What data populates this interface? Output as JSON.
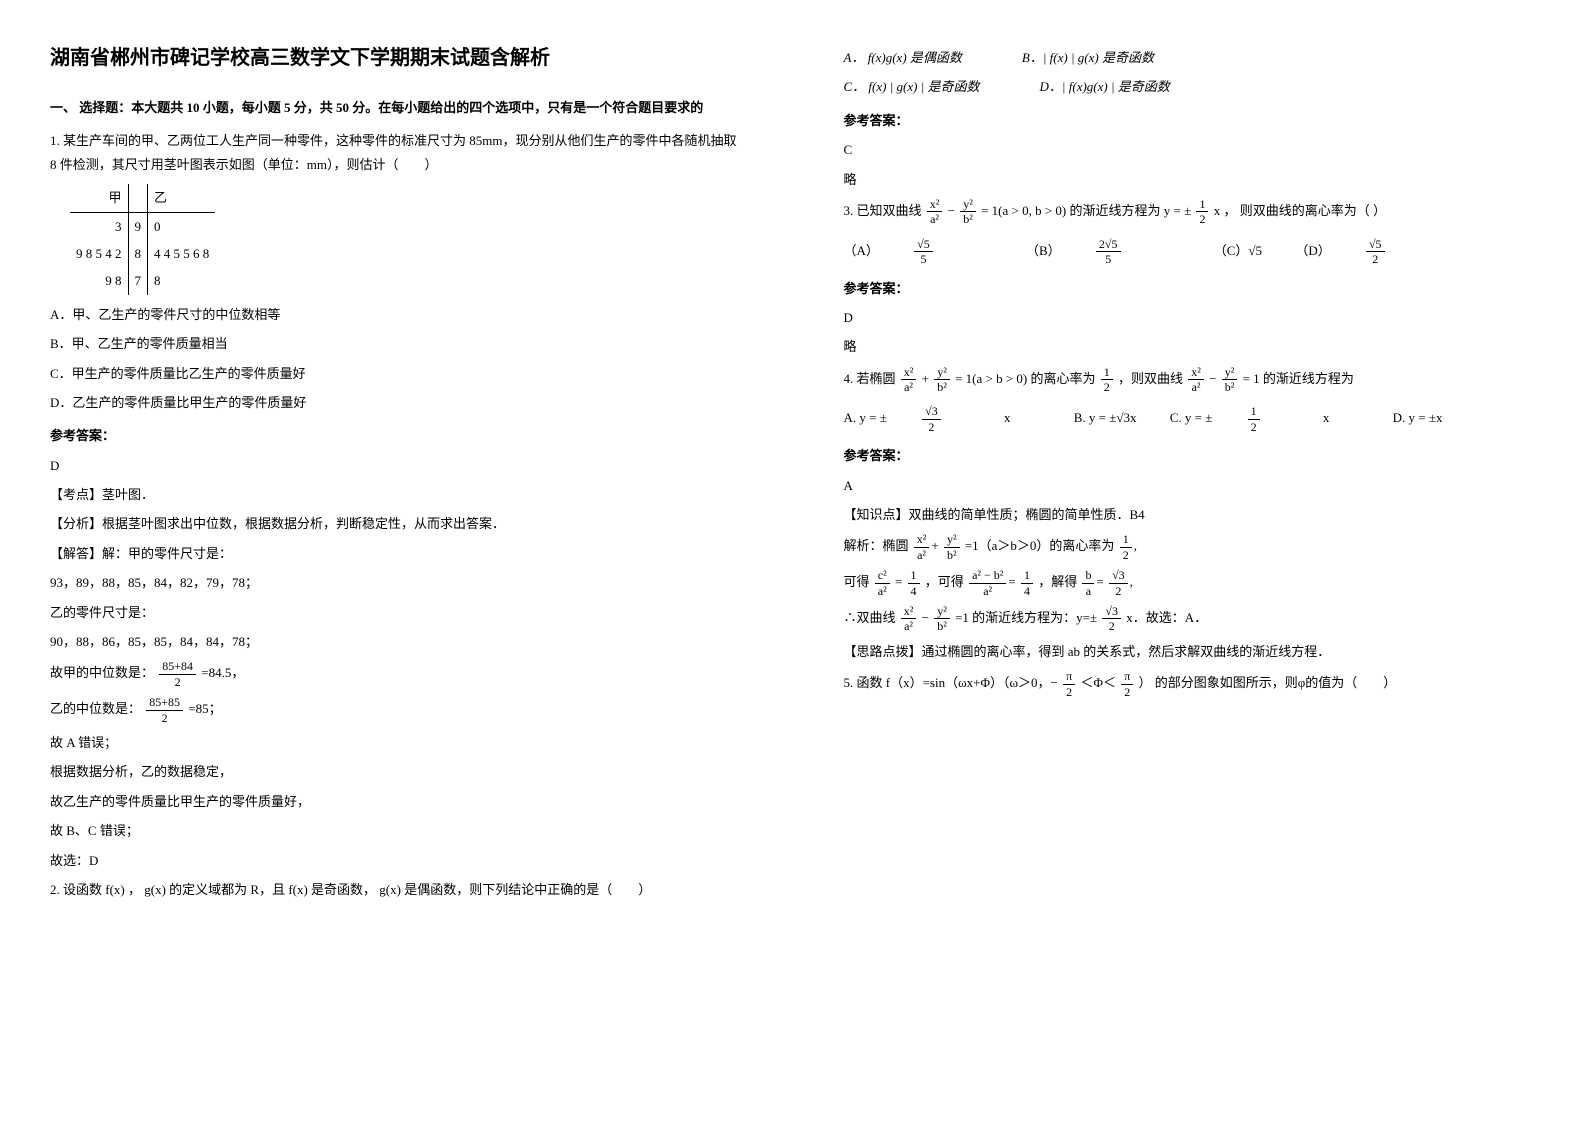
{
  "title": "湖南省郴州市碑记学校高三数学文下学期期末试题含解析",
  "section1": "一、 选择题：本大题共 10 小题，每小题 5 分，共 50 分。在每小题给出的四个选项中，只有是一个符合题目要求的",
  "q1": {
    "stem": "1. 某生产车间的甲、乙两位工人生产同一种零件，这种零件的标准尺寸为 85mm，现分别从他们生产的零件中各随机抽取 8 件检测，其尺寸用茎叶图表示如图（单位：mm），则估计（　　）",
    "table": {
      "head_left": "甲",
      "head_right": "乙",
      "rows": [
        [
          "3",
          "9",
          "0"
        ],
        [
          "9 8 5 4 2",
          "8",
          "4 4 5 5 6 8"
        ],
        [
          "9 8",
          "7",
          "8"
        ]
      ]
    },
    "optA": "A．甲、乙生产的零件尺寸的中位数相等",
    "optB": "B．甲、乙生产的零件质量相当",
    "optC": "C．甲生产的零件质量比乙生产的零件质量好",
    "optD": "D．乙生产的零件质量比甲生产的零件质量好",
    "ans_label": "参考答案：",
    "ans": "D",
    "exp1": "【考点】茎叶图．",
    "exp2": "【分析】根据茎叶图求出中位数，根据数据分析，判断稳定性，从而求出答案．",
    "exp3": "【解答】解：甲的零件尺寸是：",
    "exp4": "93，89，88，85，84，82，79，78；",
    "exp5": "乙的零件尺寸是：",
    "exp6": "90，88，86，85，85，84，84，78；",
    "exp7_pre": "故甲的中位数是：",
    "exp7_num": "85+84",
    "exp7_den": "2",
    "exp7_post": " =84.5，",
    "exp8_pre": "乙的中位数是：",
    "exp8_num": "85+85",
    "exp8_den": "2",
    "exp8_post": " =85；",
    "exp9": "故 A 错误；",
    "exp10": "根据数据分析，乙的数据稳定，",
    "exp11": "故乙生产的零件质量比甲生产的零件质量好，",
    "exp12": "故 B、C 错误；",
    "exp13": "故选：D",
    "q2stem": "2. 设函数 f(x) ， g(x) 的定义域都为 R，且 f(x) 是奇函数， g(x) 是偶函数，则下列结论中正确的是（　　）"
  },
  "q2opts": {
    "A": "A． f(x)g(x) 是偶函数",
    "B": "B．| f(x) | g(x) 是奇函数",
    "C": "C． f(x) | g(x) | 是奇函数",
    "D": "D．| f(x)g(x) | 是奇函数"
  },
  "ans_label": "参考答案：",
  "q2ans": "C",
  "q2exp": "略",
  "q3": {
    "stem_pre": "3. 已知双曲线 ",
    "eq1_num1": "x²",
    "eq1_den1": "a²",
    "eq1_minus": " − ",
    "eq1_num2": "y²",
    "eq1_den2": "b²",
    "eq1_post": " = 1(a > 0, b > 0) 的渐近线方程为 y = ± ",
    "eq2_num": "1",
    "eq2_den": "2",
    "eq2_post": "x ， 则双曲线的离心率为（ ）",
    "optA_pre": "（A）",
    "optA_num": "√5",
    "optA_den": "5",
    "optB_pre": "（B）",
    "optB_num": "2√5",
    "optB_den": "5",
    "optC": "（C）√5",
    "optD_pre": "（D）",
    "optD_num": "√5",
    "optD_den": "2",
    "ans": "D",
    "exp": "略"
  },
  "q4": {
    "stem_pre": "4. 若椭圆 ",
    "e1n1": "x²",
    "e1d1": "a²",
    "e1n2": "y²",
    "e1d2": "b²",
    "stem_mid": " = 1(a > b > 0) 的离心率为 ",
    "ec_n": "1",
    "ec_d": "2",
    "stem_mid2": "，则双曲线 ",
    "e2n1": "x²",
    "e2d1": "a²",
    "e2n2": "y²",
    "e2d2": "b²",
    "stem_post": " = 1 的渐近线方程为",
    "A_pre": "A. y = ± ",
    "A_num": "√3",
    "A_den": "2",
    "A_post": "x",
    "B": "B. y = ±√3x",
    "C_pre": "C. y = ± ",
    "C_num": "1",
    "C_den": "2",
    "C_post": "x",
    "D": "D. y = ±x",
    "ans": "A",
    "exp_head": "【知识点】双曲线的简单性质；椭圆的简单性质．B4",
    "exp1_pre": "解析：椭圆 ",
    "exp1_mid": "=1（a＞b＞0）的离心率为 ",
    "exp1_num": "1",
    "exp1_den": "2",
    "exp2_pre": "可得 ",
    "exp2_n1": "c²",
    "exp2_d1": "a²",
    "exp2_eq1": "=",
    "exp2_n2": "1",
    "exp2_d2": "4",
    "exp2_mid": "，可得 ",
    "exp2_n3": "a² − b²",
    "exp2_d3": "a²",
    "exp2_n4": "1",
    "exp2_d4": "4",
    "exp2_mid2": "，解得 ",
    "exp2_n5": "b",
    "exp2_d5": "a",
    "exp2_n6": "√3",
    "exp2_d6": "2",
    "exp3_pre": "∴双曲线 ",
    "exp3_mid": "=1 的渐近线方程为：y=± ",
    "exp3_num": "√3",
    "exp3_den": "2",
    "exp3_post": " x．故选：A．",
    "exp4": "【思路点拨】通过椭圆的离心率，得到 ab 的关系式，然后求解双曲线的渐近线方程．"
  },
  "q5": {
    "stem_pre": "5. 函数 f（x）=sin（ωx+Φ）（ω＞0，− ",
    "n1": "π",
    "d1": "2",
    "mid": "＜Φ＜",
    "n2": "π",
    "d2": "2",
    "post": "） 的部分图象如图所示，则φ的值为（　　）"
  }
}
